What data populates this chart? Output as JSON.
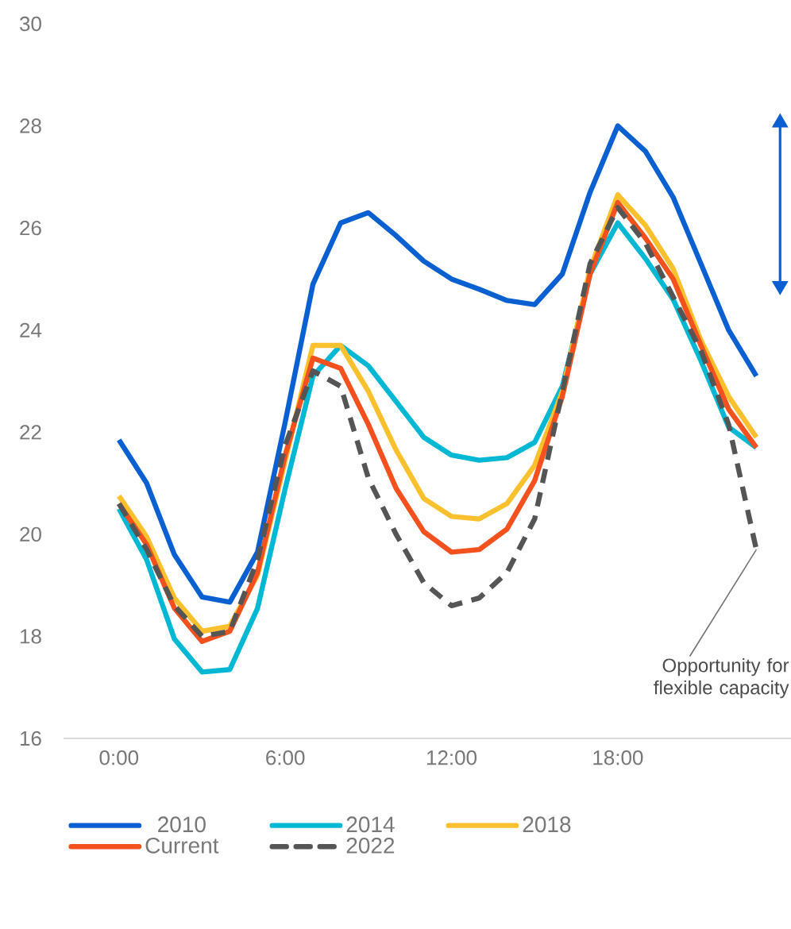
{
  "chart_data": {
    "type": "line",
    "x": [
      0,
      1,
      2,
      3,
      4,
      5,
      6,
      7,
      8,
      9,
      10,
      11,
      12,
      13,
      14,
      15,
      16,
      17,
      18,
      19,
      20,
      21,
      22,
      23
    ],
    "series": [
      {
        "name": "2010",
        "color": "#0a5fd1",
        "values": [
          21.85,
          21.0,
          19.6,
          18.77,
          18.67,
          19.65,
          22.2,
          24.9,
          26.1,
          26.3,
          25.85,
          25.35,
          25.0,
          24.8,
          24.58,
          24.5,
          25.1,
          26.7,
          28.0,
          27.5,
          26.6,
          25.3,
          24.0,
          23.1
        ]
      },
      {
        "name": "2014",
        "color": "#00b8d4",
        "values": [
          20.5,
          19.5,
          17.95,
          17.3,
          17.35,
          18.55,
          20.9,
          23.1,
          23.7,
          23.3,
          22.6,
          21.9,
          21.55,
          21.45,
          21.5,
          21.8,
          22.9,
          25.1,
          26.1,
          25.4,
          24.6,
          23.4,
          22.1,
          21.7
        ]
      },
      {
        "name": "2018",
        "color": "#fbc02d",
        "values": [
          20.75,
          19.95,
          18.75,
          18.1,
          18.2,
          19.2,
          21.45,
          23.7,
          23.7,
          22.8,
          21.65,
          20.7,
          20.35,
          20.3,
          20.6,
          21.35,
          22.8,
          25.2,
          26.65,
          26.05,
          25.2,
          23.8,
          22.7,
          21.9
        ]
      },
      {
        "name": "Current",
        "color": "#f4511e",
        "values": [
          20.6,
          19.8,
          18.55,
          17.9,
          18.1,
          19.25,
          21.55,
          23.45,
          23.25,
          22.15,
          20.9,
          20.05,
          19.65,
          19.7,
          20.1,
          21.05,
          22.7,
          25.1,
          26.5,
          25.8,
          25.0,
          23.7,
          22.45,
          21.7
        ]
      },
      {
        "name": "2022",
        "color": "#555555",
        "line_style": "dashed",
        "values": [
          20.6,
          19.7,
          18.6,
          18.0,
          18.1,
          19.5,
          21.75,
          23.2,
          22.9,
          21.1,
          20.0,
          19.05,
          18.6,
          18.75,
          19.25,
          20.3,
          22.8,
          25.3,
          26.4,
          25.7,
          24.65,
          23.6,
          22.15,
          19.7
        ]
      }
    ],
    "xlim": [
      -2,
      24.25
    ],
    "xticks": [
      {
        "value": 0,
        "label": "0:00"
      },
      {
        "value": 6,
        "label": "6:00"
      },
      {
        "value": 12,
        "label": "12:00"
      },
      {
        "value": 18,
        "label": "18:00"
      }
    ],
    "ylim": [
      16,
      30
    ],
    "yticks": [
      16,
      18,
      20,
      22,
      24,
      26,
      28,
      30
    ],
    "legend": "bottom",
    "marker": "none",
    "line_style": "solid",
    "annotations": [
      {
        "text": "Opportunity for flexible capacity",
        "x": 23,
        "y": 19.7
      }
    ]
  }
}
